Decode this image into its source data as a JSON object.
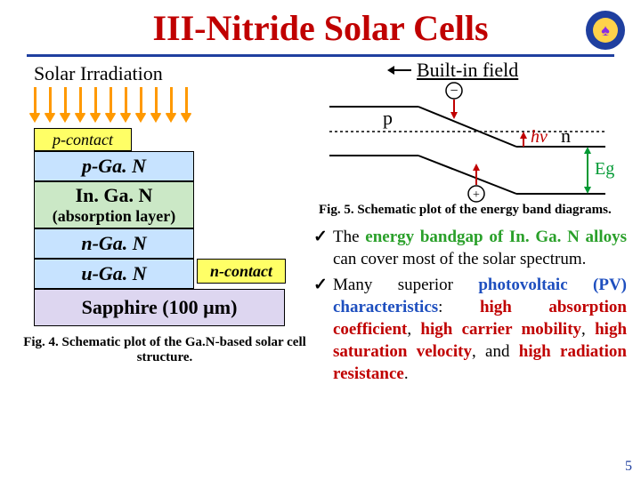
{
  "title": "III-Nitride Solar Cells",
  "title_color": "#c00000",
  "underline_color": "#1f3f9f",
  "logo": {
    "outer_bg": "#1f3f9f",
    "inner_bg": "#ffd24a",
    "bell_color": "#8a2be2",
    "glyph": "♠"
  },
  "irradiation_label": "Solar Irradiation",
  "arrows": {
    "count": 11,
    "start_x": 0,
    "gap": 17,
    "color": "#ff9900"
  },
  "layers": {
    "pcontact": {
      "label": "p-contact",
      "bg": "#ffff66"
    },
    "pgan": {
      "label": "p-Ga. N",
      "bg": "#c7e3ff"
    },
    "ingan": {
      "label": "In. Ga. N",
      "sublabel": "(absorption layer)",
      "bg": "#cbe8c6"
    },
    "ngan": {
      "label": "n-Ga. N",
      "bg": "#c7e3ff"
    },
    "ugan": {
      "label": "u-Ga. N",
      "bg": "#c7e3ff"
    },
    "ncontact": {
      "label": "n-contact",
      "bg": "#ffff66"
    },
    "sapphire": {
      "label": "Sapphire (100 µm)",
      "bg": "#ddd6f0"
    }
  },
  "fig4_caption": "Fig. 4. Schematic plot of the Ga.N-based solar cell structure.",
  "band": {
    "builtin_label": "Built-in field",
    "p_label": "p",
    "n_label": "n",
    "hv_label": "hv",
    "eg_label": "Eg",
    "hv_color": "#c00000",
    "eg_color": "#009933",
    "line_color": "#000000",
    "dash_color": "#000000",
    "minus": "−",
    "plus": "+",
    "arrow_up_color": "#c00000",
    "arrow_down_color": "#c00000",
    "circle_stroke": "#000000"
  },
  "fig5_caption": "Fig. 5. Schematic plot of the energy band diagrams.",
  "bullets": [
    {
      "pre": "The ",
      "hl1": "energy bandgap of In. Ga. N alloys",
      "mid": " can cover most of the solar spectrum.",
      "hl1_color": "#2aa02a"
    },
    {
      "pre": "Many superior ",
      "hl1": "photovoltaic (PV) characteristics",
      "mid": ": ",
      "items": [
        "high absorption coefficient",
        "high carrier mobility",
        "high saturation velocity",
        "high radiation resistance"
      ],
      "hl1_color": "#1e4fbf",
      "items_color": "#c00000"
    }
  ],
  "page_number": "5",
  "page_number_color": "#1f3f9f"
}
